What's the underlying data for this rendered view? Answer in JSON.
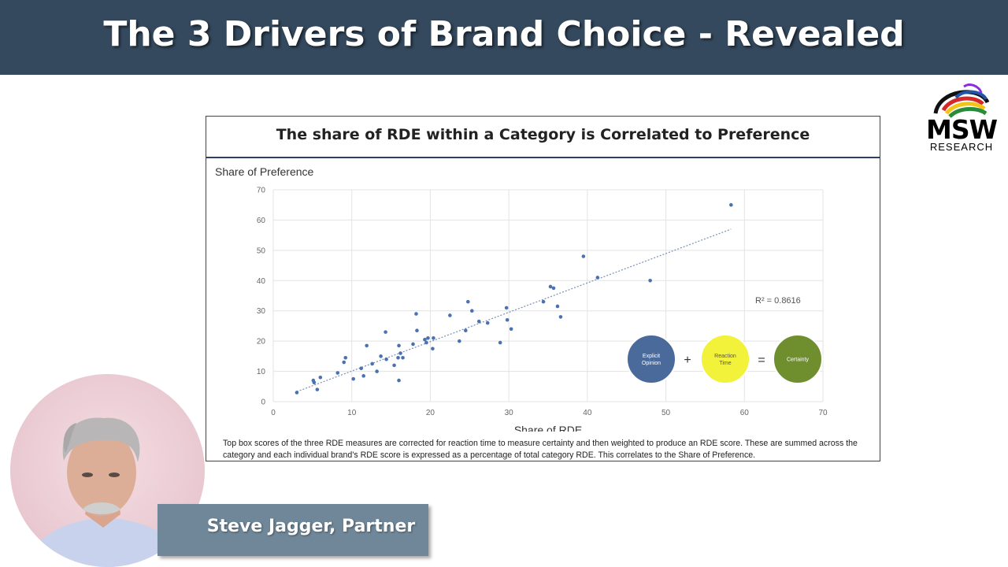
{
  "header": {
    "title": "The 3 Drivers of Brand Choice - Revealed"
  },
  "logo": {
    "name": "MSW",
    "sub": "RESEARCH"
  },
  "presenter": {
    "name": "Steve Jagger, Partner"
  },
  "slide": {
    "title": "The share of RDE within a Category is Correlated to Preference",
    "caption": "Top box scores of the three RDE measures are corrected for reaction time to measure certainty and then weighted to produce an RDE score.  These are summed across the category and each individual brand's RDE score is expressed as a percentage of total category RDE.  This correlates to the Share of Preference."
  },
  "equation": {
    "bubbles": [
      {
        "label": "Explicit Opinion",
        "color": "#4a6a9c"
      },
      {
        "label": "Reaction Time",
        "color": "#f2f23a"
      },
      {
        "label": "Certainty",
        "color": "#6f8f2f"
      }
    ],
    "plus": "+",
    "equals": "="
  },
  "chart_data": {
    "type": "scatter",
    "xlabel": "Share of RDE",
    "ylabel": "Share of Preference",
    "xlim": [
      0,
      70
    ],
    "ylim": [
      0,
      70
    ],
    "xticks": [
      0,
      10,
      20,
      30,
      40,
      50,
      60,
      70
    ],
    "yticks": [
      0,
      10,
      20,
      30,
      40,
      50,
      60,
      70
    ],
    "grid": true,
    "point_color": "#4a72b0",
    "r_squared_label": "R² = 0.8616",
    "trendline": {
      "x": [
        3,
        58.3
      ],
      "y": [
        3.3,
        57
      ]
    },
    "points": [
      [
        3,
        3
      ],
      [
        5.1,
        7
      ],
      [
        5.2,
        6.3
      ],
      [
        5.6,
        4
      ],
      [
        6,
        8
      ],
      [
        8.2,
        9.5
      ],
      [
        9,
        13
      ],
      [
        9.2,
        14.5
      ],
      [
        10.2,
        7.5
      ],
      [
        11.2,
        11
      ],
      [
        11.5,
        8.5
      ],
      [
        11.9,
        18.5
      ],
      [
        12.6,
        12.5
      ],
      [
        13.2,
        10
      ],
      [
        13.7,
        15
      ],
      [
        14.3,
        23
      ],
      [
        14.4,
        14
      ],
      [
        15.4,
        12
      ],
      [
        15.9,
        14.5
      ],
      [
        16,
        18.5
      ],
      [
        16.2,
        16
      ],
      [
        16,
        7
      ],
      [
        16.5,
        14.5
      ],
      [
        17.8,
        19
      ],
      [
        18.2,
        29
      ],
      [
        18.3,
        23.5
      ],
      [
        19.3,
        20.5
      ],
      [
        19.5,
        19.5
      ],
      [
        19.7,
        21
      ],
      [
        20.4,
        21
      ],
      [
        20.3,
        17.5
      ],
      [
        22.5,
        28.5
      ],
      [
        23.7,
        20
      ],
      [
        24.5,
        23.5
      ],
      [
        24.8,
        33
      ],
      [
        25.3,
        30
      ],
      [
        26.2,
        26.5
      ],
      [
        27.3,
        26
      ],
      [
        28.9,
        19.5
      ],
      [
        29.7,
        31
      ],
      [
        29.8,
        27
      ],
      [
        30.3,
        24
      ],
      [
        34.4,
        33
      ],
      [
        35.3,
        38
      ],
      [
        35.7,
        37.5
      ],
      [
        36.2,
        31.5
      ],
      [
        36.6,
        28
      ],
      [
        39.5,
        48
      ],
      [
        41.3,
        41
      ],
      [
        48,
        40
      ],
      [
        58.3,
        65
      ]
    ]
  }
}
